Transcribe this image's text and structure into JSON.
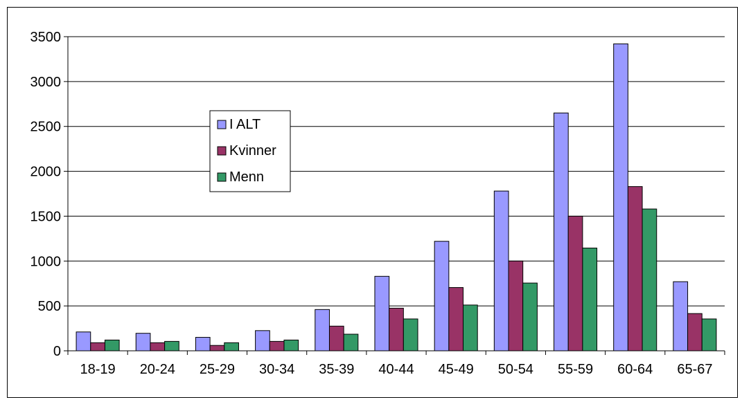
{
  "chart_data": {
    "type": "bar",
    "title": "",
    "xlabel": "",
    "ylabel": "",
    "ylim": [
      0,
      3500
    ],
    "yticks": [
      0,
      500,
      1000,
      1500,
      2000,
      2500,
      3000,
      3500
    ],
    "grid": true,
    "legend_position": "upper-left",
    "categories": [
      "18-19",
      "20-24",
      "25-29",
      "30-34",
      "35-39",
      "40-44",
      "45-49",
      "50-54",
      "55-59",
      "60-64",
      "65-67"
    ],
    "series": [
      {
        "name": "I ALT",
        "color": "#9999ff",
        "values": [
          210,
          195,
          150,
          225,
          460,
          830,
          1220,
          1780,
          2650,
          3420,
          770
        ]
      },
      {
        "name": "Kvinner",
        "color": "#993366",
        "values": [
          90,
          90,
          60,
          105,
          275,
          475,
          705,
          1000,
          1500,
          1830,
          415
        ]
      },
      {
        "name": "Menn",
        "color": "#339966",
        "values": [
          120,
          105,
          90,
          120,
          185,
          355,
          510,
          755,
          1145,
          1580,
          355
        ]
      }
    ]
  }
}
